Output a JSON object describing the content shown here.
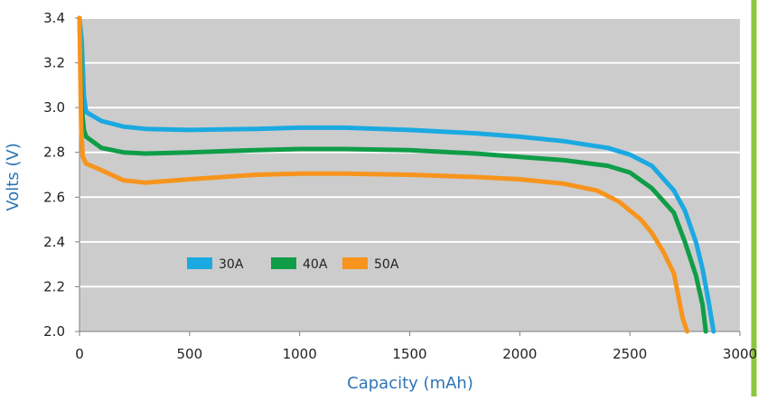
{
  "chart_data": {
    "type": "line",
    "title": "",
    "xlabel": "Capacity (mAh)",
    "ylabel": "Volts (V)",
    "xlim": [
      0,
      3000
    ],
    "ylim": [
      2.0,
      3.4
    ],
    "x_ticks": [
      0,
      500,
      1000,
      1500,
      2000,
      2500,
      3000
    ],
    "x_tick_labels": [
      "0",
      "500",
      "1000",
      "1500",
      "2000",
      "2500",
      "3000"
    ],
    "y_ticks": [
      2.0,
      2.2,
      2.4,
      2.6,
      2.8,
      3.0,
      3.2,
      3.4
    ],
    "y_tick_labels": [
      "2.0",
      "2.2",
      "2.4",
      "2.6",
      "2.8",
      "3.0",
      "3.2",
      "3.4"
    ],
    "grid": "horizontal",
    "legend_position": "lower-left",
    "background_color": "#cccccc",
    "border_color": "#8cc63f",
    "series": [
      {
        "name": "30A",
        "color": "#1ba9e1",
        "points": [
          [
            0,
            3.4
          ],
          [
            10,
            3.3
          ],
          [
            20,
            3.05
          ],
          [
            30,
            2.98
          ],
          [
            100,
            2.94
          ],
          [
            200,
            2.915
          ],
          [
            300,
            2.905
          ],
          [
            500,
            2.9
          ],
          [
            800,
            2.905
          ],
          [
            1000,
            2.91
          ],
          [
            1200,
            2.91
          ],
          [
            1500,
            2.9
          ],
          [
            1800,
            2.885
          ],
          [
            2000,
            2.87
          ],
          [
            2200,
            2.85
          ],
          [
            2400,
            2.82
          ],
          [
            2500,
            2.79
          ],
          [
            2600,
            2.74
          ],
          [
            2700,
            2.63
          ],
          [
            2750,
            2.54
          ],
          [
            2800,
            2.4
          ],
          [
            2830,
            2.28
          ],
          [
            2860,
            2.12
          ],
          [
            2880,
            2.0
          ]
        ]
      },
      {
        "name": "40A",
        "color": "#0f9d48",
        "points": [
          [
            0,
            3.4
          ],
          [
            10,
            3.0
          ],
          [
            20,
            2.9
          ],
          [
            30,
            2.87
          ],
          [
            100,
            2.82
          ],
          [
            200,
            2.8
          ],
          [
            300,
            2.795
          ],
          [
            500,
            2.8
          ],
          [
            800,
            2.81
          ],
          [
            1000,
            2.815
          ],
          [
            1200,
            2.815
          ],
          [
            1500,
            2.81
          ],
          [
            1800,
            2.795
          ],
          [
            2000,
            2.78
          ],
          [
            2200,
            2.765
          ],
          [
            2400,
            2.74
          ],
          [
            2500,
            2.71
          ],
          [
            2600,
            2.64
          ],
          [
            2700,
            2.53
          ],
          [
            2750,
            2.4
          ],
          [
            2800,
            2.25
          ],
          [
            2830,
            2.12
          ],
          [
            2845,
            2.0
          ]
        ]
      },
      {
        "name": "50A",
        "color": "#f7941d",
        "points": [
          [
            0,
            3.4
          ],
          [
            8,
            2.9
          ],
          [
            15,
            2.78
          ],
          [
            30,
            2.75
          ],
          [
            100,
            2.72
          ],
          [
            200,
            2.675
          ],
          [
            300,
            2.665
          ],
          [
            500,
            2.68
          ],
          [
            800,
            2.7
          ],
          [
            1000,
            2.705
          ],
          [
            1200,
            2.705
          ],
          [
            1500,
            2.7
          ],
          [
            1800,
            2.69
          ],
          [
            2000,
            2.68
          ],
          [
            2200,
            2.66
          ],
          [
            2350,
            2.63
          ],
          [
            2450,
            2.58
          ],
          [
            2550,
            2.5
          ],
          [
            2600,
            2.44
          ],
          [
            2650,
            2.36
          ],
          [
            2700,
            2.26
          ],
          [
            2720,
            2.16
          ],
          [
            2740,
            2.06
          ],
          [
            2760,
            2.0
          ]
        ]
      }
    ]
  }
}
